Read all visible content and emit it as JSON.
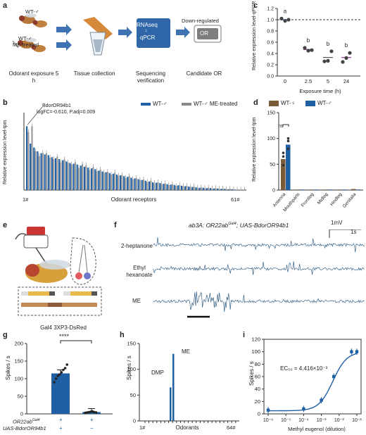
{
  "panels": {
    "a": "a",
    "b": "b",
    "c": "c",
    "d": "d",
    "e": "e",
    "f": "f",
    "g": "g",
    "h": "h",
    "i": "i"
  },
  "panel_a": {
    "wt_male": "WT-♂",
    "wt_male_me": "WT-♂",
    "me_treated": "ME-treated",
    "rnaseq": "RNAseq",
    "qpcr": "qPCR",
    "down_regulated": "Down-regulated",
    "or": "OR",
    "steps": [
      "Odorant exposure 5 h",
      "Tissue collection",
      "Sequencing verification",
      "Candidate OR"
    ],
    "colors": {
      "arrow": "#3f72b3",
      "box": "#2e66a8",
      "or_box": "#7d7d7d"
    }
  },
  "panel_b": {
    "legend": [
      "WT-♂",
      "WT-♂ ME-treated"
    ],
    "annotation": [
      "BdorOR94b1",
      "logFC=-0.610, P.adj=0.009"
    ],
    "x_first": "1#",
    "x_last": "61#",
    "xlabel": "Odorant receptors",
    "ylabel": "Relative expression level-tpm"
  },
  "panel_c": {
    "ylabel": "Relative expression level-qPCR",
    "xlabel": "Exposure time (h)",
    "letters": [
      "a",
      "b",
      "b",
      "b"
    ]
  },
  "panel_d": {
    "legend": [
      "WT-♀",
      "WT-♂"
    ],
    "ns": "ns",
    "ylabel": "Relative expression level-tpm"
  },
  "panel_e": {
    "caption": "Gal4 3XP3-DsRed"
  },
  "panel_f": {
    "title": "ab3A: OR22ab",
    "title_sup": "Gal4",
    "title_rest": "; UAS-BdorOR94b1",
    "scale_mv": "1mV",
    "scale_s": "1s",
    "traces": [
      "2-heptanone",
      "Ethyl hexanoate",
      "ME"
    ]
  },
  "panel_g": {
    "ylabel": "Spikes / s",
    "sig": "****",
    "rows": [
      {
        "label": "OR22ab",
        "sup": "Gal4",
        "vals": [
          "+",
          "+"
        ]
      },
      {
        "label": "UAS-BdorOR94b1",
        "vals": [
          "+",
          "−"
        ]
      }
    ]
  },
  "panel_h": {
    "ylabel": "Spikes / s",
    "xlabel": "Odorants",
    "x_first": "1#",
    "x_last": "64#",
    "labels": [
      "ME",
      "DMP"
    ]
  },
  "panel_i": {
    "ylabel": "Spikes / s",
    "xlabel": "Methyl eugenol (dilution)",
    "ec50": "EC₅₀ = 4.416×10⁻³"
  },
  "chart_data": [
    {
      "type": "bar",
      "panel": "b",
      "x": {
        "first": "1#",
        "last": "61#",
        "count": 61
      },
      "series": [
        {
          "name": "WT-♂",
          "values": [
            165,
            120,
            110,
            100,
            95,
            92,
            90,
            85,
            82,
            80,
            77,
            74,
            70,
            68,
            66,
            63,
            60,
            58,
            56,
            54,
            50,
            48,
            46,
            44,
            42,
            40,
            38,
            36,
            34,
            32,
            30,
            28,
            26,
            24,
            22,
            20,
            19,
            18,
            16,
            15,
            14,
            13,
            12,
            11,
            10,
            9,
            8,
            7,
            6,
            6,
            5,
            5,
            4,
            4,
            3,
            3,
            2,
            2,
            1,
            1,
            1
          ]
        },
        {
          "name": "WT-♂ ME-treated",
          "values": [
            150,
            165,
            100,
            88,
            96,
            95,
            84,
            80,
            86,
            72,
            79,
            71,
            66,
            72,
            58,
            67,
            64,
            52,
            59,
            49,
            53,
            45,
            47,
            40,
            45,
            37,
            39,
            31,
            36,
            28,
            31,
            26,
            27,
            21,
            24,
            18,
            20,
            16,
            17,
            13,
            15,
            11,
            13,
            10,
            11,
            8,
            9,
            6,
            7,
            5,
            6,
            4,
            5,
            3,
            4,
            2,
            3,
            2,
            1,
            1,
            1
          ]
        }
      ],
      "ylim": [
        0,
        200
      ]
    },
    {
      "type": "scatter",
      "panel": "c",
      "categories": [
        "0",
        "2.5",
        "5",
        "24"
      ],
      "means": [
        1.0,
        0.47,
        0.33,
        0.33
      ],
      "points": [
        [
          1.02,
          0.98,
          1.0
        ],
        [
          0.5,
          0.45,
          0.46
        ],
        [
          0.26,
          0.27,
          0.44
        ],
        [
          0.25,
          0.32,
          0.41
        ]
      ],
      "reference_line": 1.0,
      "yticks": [
        0,
        0.2,
        0.4,
        0.6,
        0.8,
        1.0,
        1.2
      ],
      "ylim": [
        0,
        1.2
      ]
    },
    {
      "type": "bar",
      "panel": "d",
      "categories": [
        "Antenna",
        "Mouthparts",
        "Frontleg",
        "Midleg",
        "Hindleg",
        "Genitalia"
      ],
      "series": [
        {
          "name": "WT-♀",
          "values": [
            60,
            1,
            1,
            1,
            1,
            2
          ],
          "color": "#7a5a38"
        },
        {
          "name": "WT-♂",
          "values": [
            88,
            1,
            1,
            1,
            1,
            1
          ],
          "color": "#1f5fa3"
        }
      ],
      "yticks": [
        0,
        50,
        100,
        150
      ],
      "ylim": [
        0,
        150
      ]
    },
    {
      "type": "bar",
      "panel": "g",
      "categories": [
        "+/+",
        "+/−"
      ],
      "values": [
        115,
        5
      ],
      "points": [
        [
          90,
          100,
          108,
          112,
          118,
          125,
          130,
          140
        ],
        [
          3,
          4,
          5,
          6,
          7,
          5,
          4
        ]
      ],
      "yticks": [
        0,
        50,
        100,
        150,
        200
      ],
      "ylim": [
        0,
        200
      ],
      "color": "#1f5fa3"
    },
    {
      "type": "bar",
      "panel": "h",
      "x": {
        "first": "1#",
        "last": "64#"
      },
      "highlighted": [
        {
          "label": "DMP",
          "value": 65
        },
        {
          "label": "ME",
          "value": 130
        }
      ],
      "yticks": [
        0,
        50,
        100,
        150
      ],
      "ylim": [
        0,
        150
      ]
    },
    {
      "type": "line",
      "panel": "i",
      "x": [
        1e-06,
        0.0001,
        0.001,
        0.005,
        0.05,
        0.1
      ],
      "y": [
        6,
        8,
        22,
        60,
        100,
        100
      ],
      "xscale": "log",
      "xticks": [
        "10⁻⁶",
        "10⁻⁵",
        "10⁻⁴",
        "10⁻³",
        "10⁻²",
        "10⁻¹"
      ],
      "yticks": [
        0,
        20,
        40,
        60,
        80,
        100,
        120
      ],
      "ylim": [
        0,
        120
      ]
    }
  ]
}
